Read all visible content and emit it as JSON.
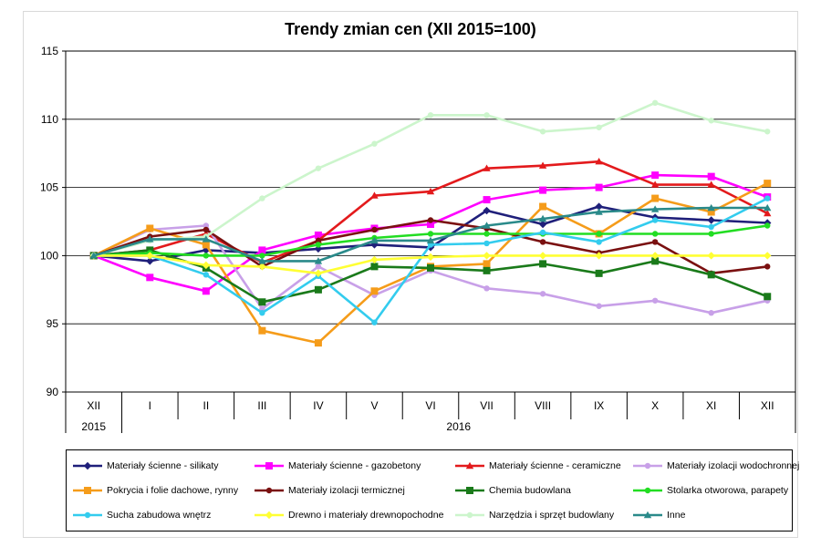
{
  "chart_data": {
    "type": "line",
    "title": "Trendy zmian cen (XII 2015=100)",
    "xlabel": "",
    "ylabel": "",
    "ylim": [
      90,
      115
    ],
    "yticks": [
      90,
      95,
      100,
      105,
      110,
      115
    ],
    "grid": true,
    "legend_position": "bottom",
    "categories": [
      "XII",
      "I",
      "II",
      "III",
      "IV",
      "V",
      "VI",
      "VII",
      "VIII",
      "IX",
      "X",
      "XI",
      "XII"
    ],
    "year_labels": [
      "2015",
      "2016"
    ],
    "series": [
      {
        "name": "Materiały ścienne - silikaty",
        "color": "#1f1f7a",
        "marker": "diamond",
        "values": [
          100,
          99.6,
          100.4,
          100.2,
          100.5,
          100.8,
          100.6,
          103.3,
          102.3,
          103.6,
          102.8,
          102.6,
          102.4
        ]
      },
      {
        "name": "Materiały ścienne - gazobetony",
        "color": "#ff00ff",
        "marker": "square",
        "values": [
          100,
          98.4,
          97.4,
          100.4,
          101.5,
          102.0,
          102.3,
          104.1,
          104.8,
          105.0,
          105.9,
          105.8,
          104.3
        ]
      },
      {
        "name": "Materiały ścienne - ceramiczne",
        "color": "#e31a1c",
        "marker": "triangle",
        "values": [
          100,
          100.4,
          101.6,
          99.5,
          101.1,
          104.4,
          104.7,
          106.4,
          106.6,
          106.9,
          105.2,
          105.2,
          103.1
        ]
      },
      {
        "name": "Materiały izolacji wodochronnej",
        "color": "#c8a0e8",
        "marker": "circle",
        "values": [
          100,
          101.9,
          102.2,
          96.1,
          99.2,
          97.1,
          98.9,
          97.6,
          97.2,
          96.3,
          96.7,
          95.8,
          96.7
        ]
      },
      {
        "name": "Pokrycia i folie dachowe, rynny",
        "color": "#f59c1a",
        "marker": "square",
        "values": [
          100,
          102.0,
          100.8,
          94.5,
          93.6,
          97.4,
          99.2,
          99.4,
          103.6,
          101.6,
          104.2,
          103.2,
          105.3
        ]
      },
      {
        "name": "Materiały izolacji termicznej",
        "color": "#7a1010",
        "marker": "circle",
        "values": [
          100,
          101.4,
          101.9,
          99.2,
          101.1,
          101.9,
          102.6,
          102.0,
          101.0,
          100.2,
          101.0,
          98.7,
          99.2
        ]
      },
      {
        "name": "Chemia budowlana",
        "color": "#1a7a1a",
        "marker": "square",
        "values": [
          100,
          100.4,
          99.1,
          96.6,
          97.5,
          99.2,
          99.1,
          98.9,
          99.4,
          98.7,
          99.6,
          98.6,
          97.0
        ]
      },
      {
        "name": "Stolarka otworowa, parapety",
        "color": "#22dd22",
        "marker": "circle",
        "values": [
          100,
          100.2,
          100.0,
          100.0,
          100.8,
          101.3,
          101.6,
          101.6,
          101.6,
          101.6,
          101.6,
          101.6,
          102.2
        ]
      },
      {
        "name": "Sucha zabudowa wnętrz",
        "color": "#33ccee",
        "marker": "circle",
        "values": [
          100,
          100.0,
          98.6,
          95.8,
          98.5,
          95.1,
          100.8,
          100.9,
          101.7,
          101.0,
          102.6,
          102.1,
          104.2
        ]
      },
      {
        "name": "Drewno i materiały drewnopochodne",
        "color": "#ffff33",
        "marker": "diamond",
        "values": [
          100,
          100.0,
          99.3,
          99.2,
          98.7,
          99.7,
          99.9,
          100.0,
          100.0,
          100.0,
          100.0,
          100.0,
          100.0
        ]
      },
      {
        "name": "Narzędzia i sprzęt budowlany",
        "color": "#ccf5cc",
        "marker": "circle",
        "values": [
          100,
          101.1,
          101.4,
          104.2,
          106.4,
          108.2,
          110.3,
          110.3,
          109.1,
          109.4,
          111.2,
          109.9,
          109.1
        ]
      },
      {
        "name": "Inne",
        "color": "#2a8a8a",
        "marker": "triangle",
        "values": [
          100,
          101.2,
          101.2,
          99.6,
          99.6,
          101.1,
          101.1,
          102.2,
          102.7,
          103.2,
          103.4,
          103.5,
          103.5
        ]
      }
    ]
  }
}
